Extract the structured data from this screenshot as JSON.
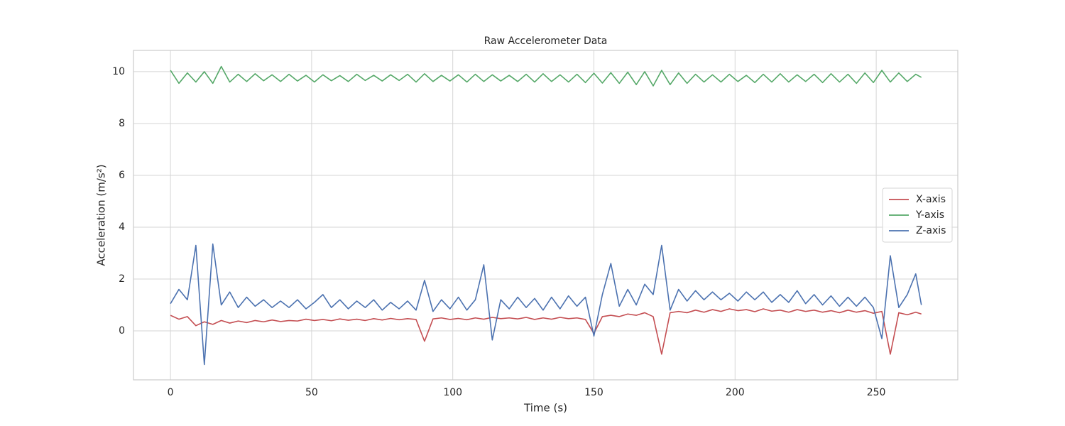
{
  "chart_data": {
    "type": "line",
    "title": "Raw Accelerometer Data",
    "xlabel": "Time (s)",
    "ylabel": "Acceleration (m/s²)",
    "x": [
      0,
      3,
      6,
      9,
      12,
      15,
      18,
      21,
      24,
      27,
      30,
      33,
      36,
      39,
      42,
      45,
      48,
      51,
      54,
      57,
      60,
      63,
      66,
      69,
      72,
      75,
      78,
      81,
      84,
      87,
      90,
      93,
      96,
      99,
      102,
      105,
      108,
      111,
      114,
      117,
      120,
      123,
      126,
      129,
      132,
      135,
      138,
      141,
      144,
      147,
      150,
      153,
      156,
      159,
      162,
      165,
      168,
      171,
      174,
      177,
      180,
      183,
      186,
      189,
      192,
      195,
      198,
      201,
      204,
      207,
      210,
      213,
      216,
      219,
      222,
      225,
      228,
      231,
      234,
      237,
      240,
      243,
      246,
      249,
      252,
      255,
      258,
      261,
      264,
      266
    ],
    "series": [
      {
        "name": "X-axis",
        "color": "#c44e52",
        "values": [
          0.6,
          0.45,
          0.55,
          0.2,
          0.35,
          0.25,
          0.4,
          0.3,
          0.38,
          0.32,
          0.4,
          0.35,
          0.42,
          0.36,
          0.4,
          0.38,
          0.45,
          0.4,
          0.44,
          0.39,
          0.46,
          0.41,
          0.45,
          0.4,
          0.47,
          0.42,
          0.48,
          0.43,
          0.47,
          0.44,
          -0.4,
          0.46,
          0.5,
          0.44,
          0.48,
          0.43,
          0.5,
          0.45,
          0.52,
          0.47,
          0.5,
          0.46,
          0.52,
          0.44,
          0.5,
          0.45,
          0.52,
          0.47,
          0.5,
          0.44,
          -0.1,
          0.55,
          0.6,
          0.55,
          0.65,
          0.6,
          0.7,
          0.55,
          -0.9,
          0.7,
          0.75,
          0.7,
          0.8,
          0.72,
          0.82,
          0.75,
          0.85,
          0.78,
          0.82,
          0.74,
          0.85,
          0.76,
          0.8,
          0.72,
          0.82,
          0.75,
          0.8,
          0.72,
          0.78,
          0.7,
          0.8,
          0.72,
          0.78,
          0.68,
          0.75,
          -0.9,
          0.7,
          0.62,
          0.72,
          0.65
        ]
      },
      {
        "name": "Y-axis",
        "color": "#55a868",
        "values": [
          10.05,
          9.55,
          9.95,
          9.6,
          10.0,
          9.55,
          10.2,
          9.6,
          9.9,
          9.62,
          9.92,
          9.65,
          9.88,
          9.62,
          9.9,
          9.64,
          9.86,
          9.6,
          9.88,
          9.65,
          9.85,
          9.62,
          9.9,
          9.66,
          9.86,
          9.64,
          9.88,
          9.66,
          9.9,
          9.6,
          9.92,
          9.62,
          9.86,
          9.64,
          9.88,
          9.6,
          9.9,
          9.62,
          9.88,
          9.64,
          9.86,
          9.62,
          9.9,
          9.6,
          9.92,
          9.62,
          9.88,
          9.6,
          9.9,
          9.58,
          9.94,
          9.56,
          9.96,
          9.55,
          9.98,
          9.5,
          10.0,
          9.45,
          10.05,
          9.5,
          9.95,
          9.55,
          9.9,
          9.6,
          9.88,
          9.6,
          9.9,
          9.62,
          9.86,
          9.58,
          9.9,
          9.6,
          9.92,
          9.6,
          9.88,
          9.62,
          9.9,
          9.58,
          9.92,
          9.6,
          9.9,
          9.55,
          9.95,
          9.58,
          10.05,
          9.6,
          9.95,
          9.62,
          9.9,
          9.78
        ]
      },
      {
        "name": "Z-axis",
        "color": "#4c72b0",
        "values": [
          1.05,
          1.6,
          1.2,
          3.3,
          -1.3,
          3.35,
          1.0,
          1.5,
          0.9,
          1.3,
          0.95,
          1.2,
          0.9,
          1.15,
          0.9,
          1.2,
          0.85,
          1.1,
          1.4,
          0.9,
          1.2,
          0.85,
          1.15,
          0.9,
          1.2,
          0.8,
          1.1,
          0.85,
          1.15,
          0.8,
          1.95,
          0.75,
          1.2,
          0.85,
          1.3,
          0.8,
          1.2,
          2.55,
          -0.35,
          1.2,
          0.85,
          1.3,
          0.9,
          1.25,
          0.8,
          1.3,
          0.85,
          1.35,
          0.95,
          1.3,
          -0.2,
          1.4,
          2.6,
          0.95,
          1.6,
          1.0,
          1.8,
          1.4,
          3.3,
          0.8,
          1.6,
          1.15,
          1.55,
          1.2,
          1.5,
          1.2,
          1.45,
          1.15,
          1.5,
          1.2,
          1.5,
          1.1,
          1.4,
          1.1,
          1.55,
          1.05,
          1.4,
          1.0,
          1.35,
          0.95,
          1.3,
          0.95,
          1.3,
          0.9,
          -0.3,
          2.9,
          0.9,
          1.4,
          2.2,
          1.0
        ]
      }
    ],
    "xlim": [
      -13.1,
      278.9
    ],
    "ylim": [
      -1.89,
      10.82
    ],
    "xticks": [
      0,
      50,
      100,
      150,
      200,
      250
    ],
    "yticks": [
      0,
      2,
      4,
      6,
      8,
      10
    ],
    "grid": true,
    "legend": "center right"
  }
}
